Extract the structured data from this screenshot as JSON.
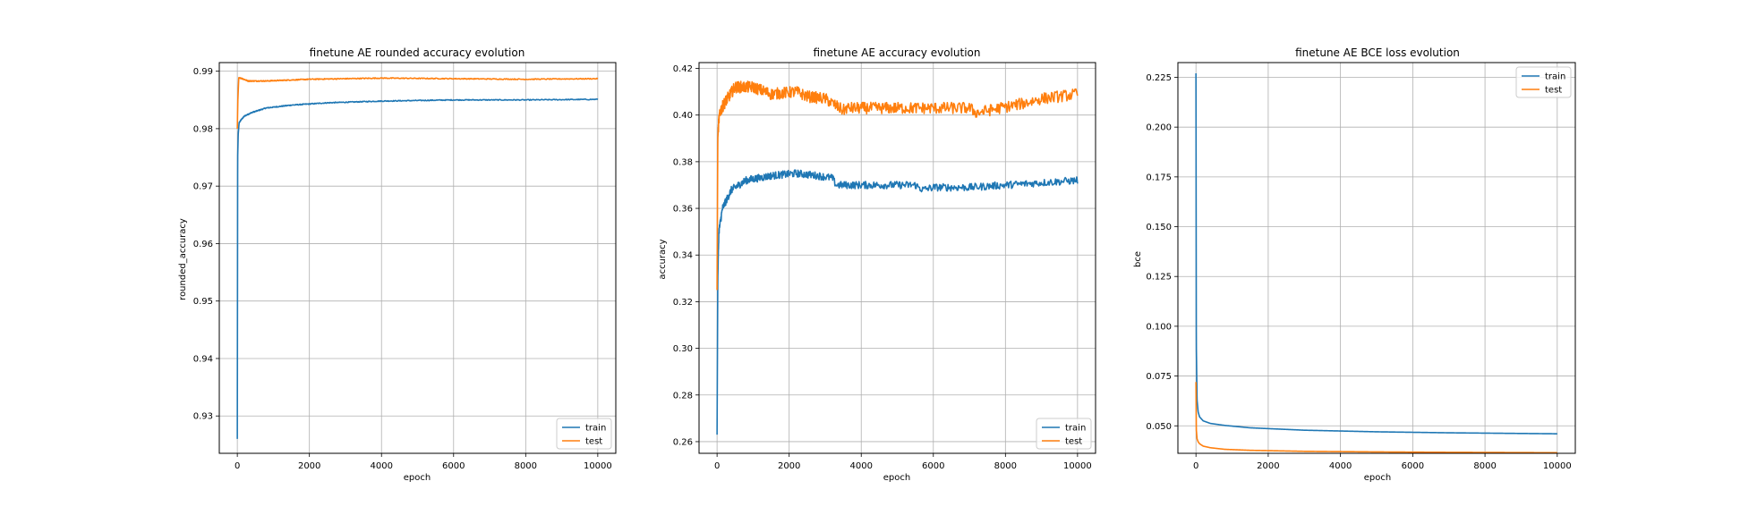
{
  "chart_data": [
    {
      "type": "line",
      "title": "finetune AE rounded accuracy evolution",
      "xlabel": "epoch",
      "ylabel": "rounded_accuracy",
      "xlim": [
        -500,
        10500
      ],
      "ylim": [
        0.9235,
        0.9915
      ],
      "xticks": [
        0,
        2000,
        4000,
        6000,
        8000,
        10000
      ],
      "yticks": [
        0.93,
        0.94,
        0.95,
        0.96,
        0.97,
        0.98,
        0.99
      ],
      "ytick_labels": [
        "0.93",
        "0.94",
        "0.95",
        "0.96",
        "0.97",
        "0.98",
        "0.99"
      ],
      "grid": true,
      "legend": "lower-right",
      "series": [
        {
          "name": "train",
          "color": "#1f77b4",
          "noise": 8e-05,
          "x": [
            0,
            10,
            25,
            50,
            100,
            200,
            400,
            800,
            1500,
            2500,
            4000,
            6000,
            8000,
            10000
          ],
          "y": [
            0.926,
            0.975,
            0.979,
            0.981,
            0.9815,
            0.9822,
            0.9828,
            0.9836,
            0.9841,
            0.9845,
            0.9848,
            0.985,
            0.985,
            0.9851
          ]
        },
        {
          "name": "test",
          "color": "#ff7f0e",
          "noise": 8e-05,
          "x": [
            0,
            15,
            40,
            100,
            300,
            800,
            2000,
            4000,
            6000,
            8000,
            10000
          ],
          "y": [
            0.98,
            0.985,
            0.9888,
            0.9888,
            0.9883,
            0.9883,
            0.9886,
            0.9888,
            0.9887,
            0.9886,
            0.9887
          ]
        }
      ]
    },
    {
      "type": "line",
      "title": "finetune AE accuracy evolution",
      "xlabel": "epoch",
      "ylabel": "accuracy",
      "xlim": [
        -500,
        10500
      ],
      "ylim": [
        0.255,
        0.4225
      ],
      "xticks": [
        0,
        2000,
        4000,
        6000,
        8000,
        10000
      ],
      "yticks": [
        0.26,
        0.28,
        0.3,
        0.32,
        0.34,
        0.36,
        0.38,
        0.4,
        0.42
      ],
      "ytick_labels": [
        "0.26",
        "0.28",
        "0.30",
        "0.32",
        "0.34",
        "0.36",
        "0.38",
        "0.40",
        "0.42"
      ],
      "grid": true,
      "legend": "lower-right",
      "series": [
        {
          "name": "train",
          "color": "#1f77b4",
          "noise": 0.0016,
          "x": [
            0,
            20,
            50,
            150,
            400,
            800,
            1500,
            2200,
            2800,
            3200,
            3300,
            5500,
            5700,
            6000,
            7000,
            8000,
            9000,
            10000
          ],
          "y": [
            0.263,
            0.33,
            0.35,
            0.36,
            0.368,
            0.372,
            0.374,
            0.375,
            0.374,
            0.373,
            0.37,
            0.37,
            0.368,
            0.369,
            0.369,
            0.37,
            0.371,
            0.372
          ]
        },
        {
          "name": "test",
          "color": "#ff7f0e",
          "noise": 0.0025,
          "x": [
            0,
            20,
            50,
            100,
            200,
            500,
            1000,
            1500,
            2200,
            2500,
            3000,
            3500,
            3600,
            7000,
            7200,
            8500,
            9000,
            10000
          ],
          "y": [
            0.325,
            0.39,
            0.398,
            0.402,
            0.405,
            0.412,
            0.412,
            0.409,
            0.41,
            0.408,
            0.407,
            0.402,
            0.403,
            0.403,
            0.401,
            0.405,
            0.407,
            0.409
          ]
        }
      ]
    },
    {
      "type": "line",
      "title": "finetune AE BCE loss evolution",
      "xlabel": "epoch",
      "ylabel": "bce",
      "xlim": [
        -500,
        10500
      ],
      "ylim": [
        0.0362,
        0.2324
      ],
      "xticks": [
        0,
        2000,
        4000,
        6000,
        8000,
        10000
      ],
      "yticks": [
        0.05,
        0.075,
        0.1,
        0.125,
        0.15,
        0.175,
        0.2,
        0.225
      ],
      "ytick_labels": [
        "0.050",
        "0.075",
        "0.100",
        "0.125",
        "0.150",
        "0.175",
        "0.200",
        "0.225"
      ],
      "grid": true,
      "legend": "upper-right",
      "series": [
        {
          "name": "train",
          "color": "#1f77b4",
          "noise": 0,
          "x": [
            0,
            10,
            30,
            60,
            100,
            200,
            400,
            800,
            1500,
            3000,
            5000,
            7000,
            10000
          ],
          "y": [
            0.227,
            0.09,
            0.063,
            0.057,
            0.0545,
            0.0525,
            0.0512,
            0.0502,
            0.049,
            0.0478,
            0.047,
            0.0465,
            0.046
          ]
        },
        {
          "name": "test",
          "color": "#ff7f0e",
          "noise": 0,
          "x": [
            0,
            10,
            30,
            60,
            100,
            200,
            400,
            800,
            1500,
            3000,
            5000,
            7000,
            10000
          ],
          "y": [
            0.072,
            0.048,
            0.0435,
            0.042,
            0.041,
            0.0398,
            0.039,
            0.0382,
            0.0377,
            0.0372,
            0.0369,
            0.0367,
            0.0365
          ]
        }
      ]
    }
  ]
}
